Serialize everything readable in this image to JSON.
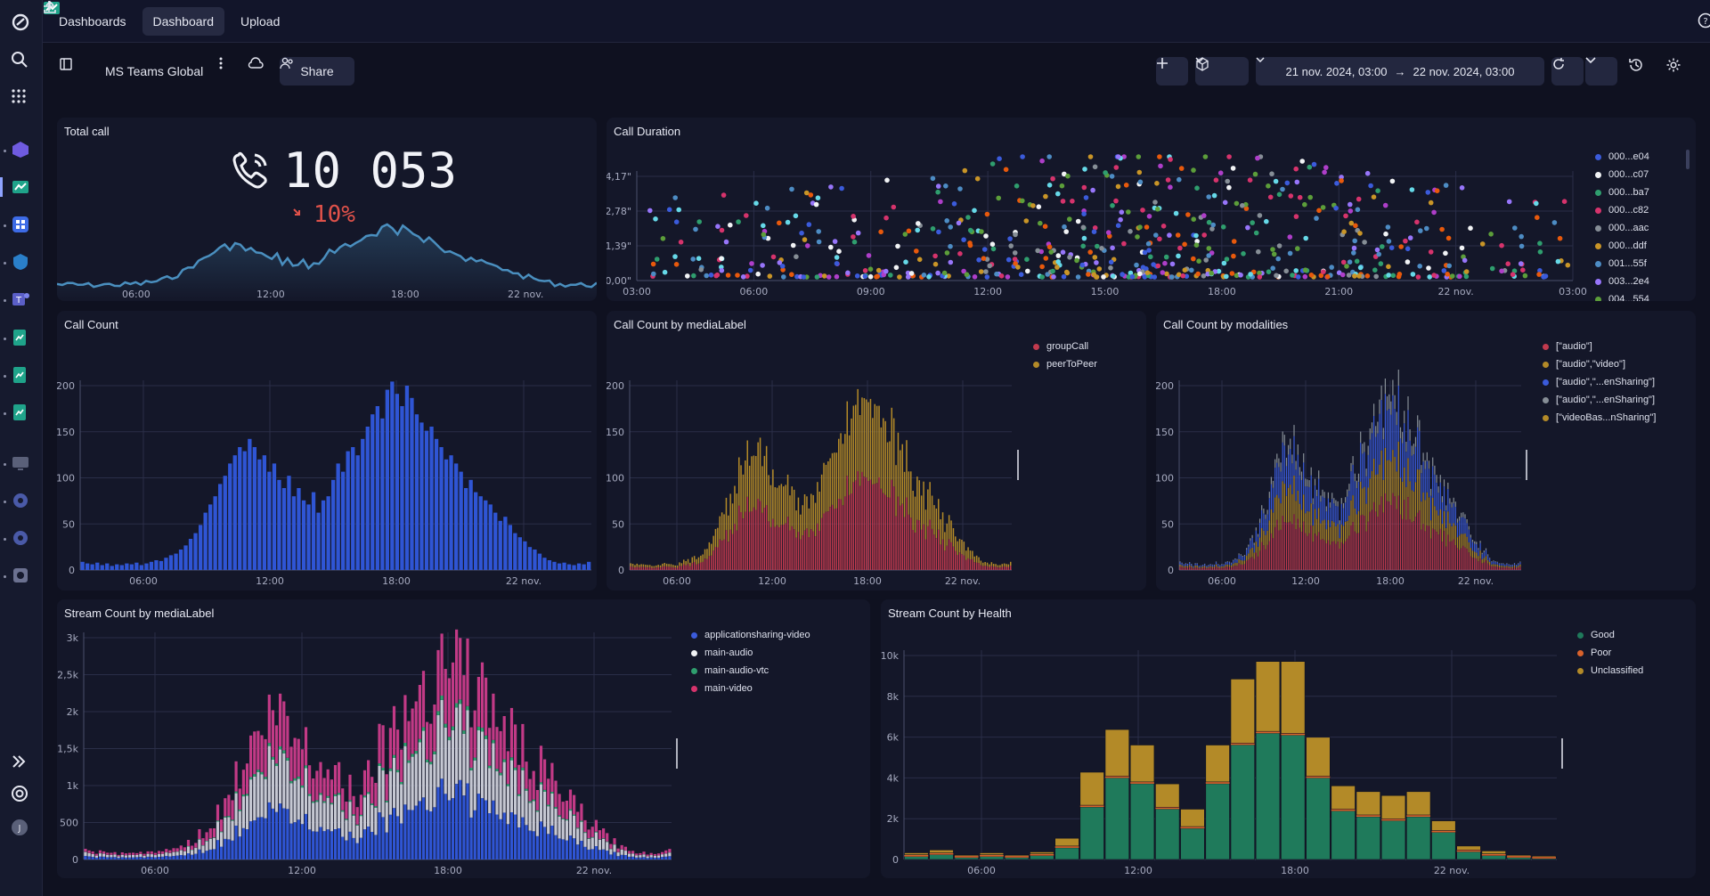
{
  "topbar": {
    "tabs": [
      {
        "label": "Dashboards",
        "icon": "dashboard-app-icon"
      },
      {
        "label": "Dashboard",
        "icon": "plus-icon"
      },
      {
        "label": "Upload",
        "icon": "upload-icon"
      }
    ]
  },
  "toolbar": {
    "dashboard_name": "MS Teams Global",
    "share_label": "Share",
    "timeframe_from": "21 nov. 2024, 03:00",
    "timeframe_arrow": "→",
    "timeframe_to": "22 nov. 2024, 03:00"
  },
  "colors": {
    "accent_blue": "#2f55d4",
    "red": "#c23a4e",
    "gold": "#b38a28",
    "green": "#1f7a5b",
    "pink": "#c23a86",
    "line": "#3f7ea8"
  },
  "total_call": {
    "title": "Total call",
    "value": "10 053",
    "change": "10%",
    "x_ticks": [
      "06:00",
      "12:00",
      "18:00",
      "22 nov."
    ]
  },
  "chart_data": [
    {
      "id": "call-duration",
      "type": "scatter",
      "title": "Call Duration",
      "y_ticks": [
        "0,00\"",
        "1,39\"",
        "2,78\"",
        "4,17\""
      ],
      "x_ticks": [
        "03:00",
        "06:00",
        "09:00",
        "12:00",
        "15:00",
        "18:00",
        "21:00",
        "22 nov.",
        "03:00"
      ],
      "legend": [
        {
          "name": "000...e04",
          "color": "#3b5bdb"
        },
        {
          "name": "000...c07",
          "color": "#f1f3f5"
        },
        {
          "name": "000...ba7",
          "color": "#2f9e6e"
        },
        {
          "name": "000...c82",
          "color": "#d6336c"
        },
        {
          "name": "000...aac",
          "color": "#868e96"
        },
        {
          "name": "000...ddf",
          "color": "#c99527"
        },
        {
          "name": "001...55f",
          "color": "#4d8cc4"
        },
        {
          "name": "003...2e4",
          "color": "#9775fa"
        },
        {
          "name": "004...554",
          "color": "#5c9e3a"
        }
      ]
    },
    {
      "id": "call-count",
      "type": "bar",
      "title": "Call Count",
      "y_ticks": [
        "0",
        "50",
        "100",
        "150",
        "200"
      ],
      "ylim": [
        0,
        225
      ],
      "x_ticks": [
        "06:00",
        "12:00",
        "18:00",
        "22 nov."
      ],
      "series": [
        {
          "values": [
            10,
            8,
            7,
            9,
            6,
            8,
            5,
            7,
            6,
            8,
            7,
            9,
            6,
            8,
            10,
            12,
            11,
            15,
            18,
            20,
            25,
            30,
            38,
            45,
            55,
            70,
            80,
            90,
            105,
            115,
            130,
            140,
            150,
            145,
            160,
            150,
            135,
            140,
            120,
            130,
            110,
            100,
            115,
            90,
            100,
            85,
            80,
            95,
            70,
            85,
            90,
            110,
            130,
            120,
            145,
            150,
            140,
            160,
            175,
            190,
            200,
            185,
            220,
            230,
            215,
            200,
            225,
            210,
            190,
            180,
            170,
            175,
            160,
            150,
            135,
            140,
            130,
            120,
            100,
            110,
            95,
            90,
            85,
            80,
            70,
            60,
            65,
            55,
            45,
            40,
            35,
            28,
            25,
            20,
            15,
            12,
            10,
            8,
            9,
            7,
            6,
            8,
            7,
            10
          ]
        }
      ]
    },
    {
      "id": "call-count-medialabel",
      "type": "bar",
      "title": "Call Count by mediaLabel",
      "y_ticks": [
        "0",
        "50",
        "100",
        "150",
        "200"
      ],
      "ylim": [
        0,
        225
      ],
      "x_ticks": [
        "06:00",
        "12:00",
        "18:00",
        "22 nov."
      ],
      "legend": [
        {
          "name": "groupCall",
          "color": "#c23a4e"
        },
        {
          "name": "peerToPeer",
          "color": "#b38a28"
        }
      ]
    },
    {
      "id": "call-count-modalities",
      "type": "bar",
      "title": "Call Count by modalities",
      "y_ticks": [
        "0",
        "50",
        "100",
        "150",
        "200"
      ],
      "ylim": [
        0,
        225
      ],
      "x_ticks": [
        "06:00",
        "12:00",
        "18:00",
        "22 nov."
      ],
      "legend": [
        {
          "name": "[\"audio\"]",
          "color": "#c23a4e"
        },
        {
          "name": "[\"audio\",\"video\"]",
          "color": "#b38a28"
        },
        {
          "name": "[\"audio\",\"...enSharing\"]",
          "color": "#3b5bdb"
        },
        {
          "name": "[\"audio\",\"...enSharing\"]",
          "color": "#868e96"
        },
        {
          "name": "[\"videoBas...nSharing\"]",
          "color": "#b38a28"
        }
      ]
    },
    {
      "id": "stream-count-medialabel",
      "type": "bar",
      "title": "Stream Count by mediaLabel",
      "y_ticks": [
        "0",
        "500",
        "1k",
        "1,5k",
        "2k",
        "2,5k",
        "3k"
      ],
      "ylim": [
        0,
        3000
      ],
      "x_ticks": [
        "06:00",
        "12:00",
        "18:00",
        "22 nov."
      ],
      "legend": [
        {
          "name": "applicationsharing-video",
          "color": "#3b5bdb"
        },
        {
          "name": "main-audio",
          "color": "#f1f3f5"
        },
        {
          "name": "main-audio-vtc",
          "color": "#2f9e6e"
        },
        {
          "name": "main-video",
          "color": "#d6336c"
        }
      ]
    },
    {
      "id": "stream-count-health",
      "type": "bar",
      "title": "Stream Count by Health",
      "y_ticks": [
        "0",
        "2k",
        "4k",
        "6k",
        "8k",
        "10k"
      ],
      "ylim": [
        0,
        10500
      ],
      "x_ticks": [
        "06:00",
        "12:00",
        "18:00",
        "22 nov."
      ],
      "legend": [
        {
          "name": "Good",
          "color": "#1f7a5b"
        },
        {
          "name": "Poor",
          "color": "#d9622b"
        },
        {
          "name": "Unclassified",
          "color": "#b38a28"
        }
      ],
      "series": [
        {
          "name": "Good",
          "values": [
            150,
            250,
            100,
            150,
            100,
            200,
            600,
            2700,
            4200,
            3900,
            2600,
            1600,
            3900,
            5900,
            6500,
            6400,
            4200,
            2500,
            2200,
            2000,
            2200,
            1400,
            400,
            200,
            100,
            50
          ]
        },
        {
          "name": "Unclassified",
          "values": [
            100,
            150,
            50,
            100,
            50,
            100,
            400,
            1700,
            2400,
            1900,
            1200,
            900,
            1900,
            3300,
            3600,
            3700,
            2000,
            1200,
            1200,
            1200,
            1200,
            500,
            200,
            150,
            50,
            50
          ]
        }
      ]
    }
  ]
}
